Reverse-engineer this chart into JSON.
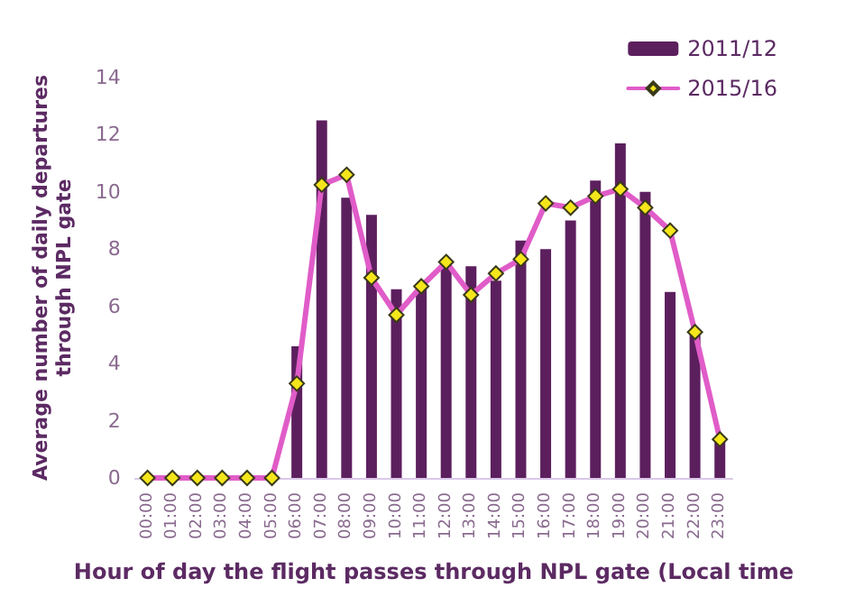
{
  "chart_data": {
    "type": "bar",
    "xlabel": "Hour of day the flight passes through NPL gate (Local time",
    "ylabel": "Average number of daily departures\nthrough NPL gate",
    "categories": [
      "00:00",
      "01:00",
      "02:00",
      "03:00",
      "04:00",
      "05:00",
      "06:00",
      "07:00",
      "08:00",
      "09:00",
      "10:00",
      "11:00",
      "12:00",
      "13:00",
      "14:00",
      "15:00",
      "16:00",
      "17:00",
      "18:00",
      "19:00",
      "20:00",
      "21:00",
      "22:00",
      "23:00"
    ],
    "series": [
      {
        "name": "2011/12",
        "color": "#5c1f5e",
        "values": [
          0,
          0,
          0,
          0,
          0,
          0,
          4.6,
          12.5,
          9.8,
          9.2,
          6.6,
          6.6,
          7.55,
          7.4,
          6.9,
          8.3,
          8.0,
          9.0,
          10.4,
          11.7,
          10.0,
          6.5,
          5.0,
          1.35
        ]
      },
      {
        "name": "2015/16",
        "type": "line",
        "color": "#e05cc8",
        "marker": "diamond",
        "values": [
          0,
          0,
          0,
          0,
          0,
          0,
          3.3,
          10.25,
          10.6,
          7.0,
          5.7,
          6.7,
          7.55,
          6.4,
          7.15,
          7.65,
          9.6,
          9.45,
          9.85,
          10.1,
          9.45,
          8.65,
          5.1,
          1.35
        ]
      }
    ],
    "ylim": [
      0,
      14
    ],
    "yticks": [
      0,
      2,
      4,
      6,
      8,
      10,
      12,
      14
    ],
    "grid": false,
    "legend": "top right"
  }
}
